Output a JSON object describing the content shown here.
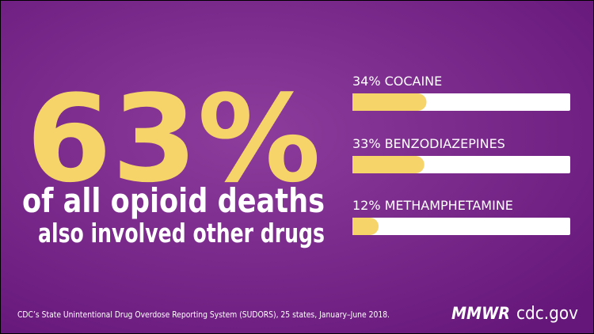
{
  "chart_data": {
    "type": "bar",
    "orientation": "horizontal",
    "headline": "63%",
    "headline_text": [
      "of all opioid deaths",
      "also involved other drugs"
    ],
    "categories": [
      "COCAINE",
      "BENZODIAZEPINES",
      "METHAMPHETAMINE"
    ],
    "values": [
      34,
      33,
      12
    ],
    "value_labels": [
      "34%",
      "33%",
      "12%"
    ],
    "xlim": [
      0,
      100
    ],
    "color": "#f6d46a",
    "track_color": "#ffffff",
    "source": "CDC’s State Unintentional Drug Overdose Reporting System (SUDORS), 25 states, January–June 2018.",
    "logo": "MMWR",
    "site": "cdc.gov"
  }
}
